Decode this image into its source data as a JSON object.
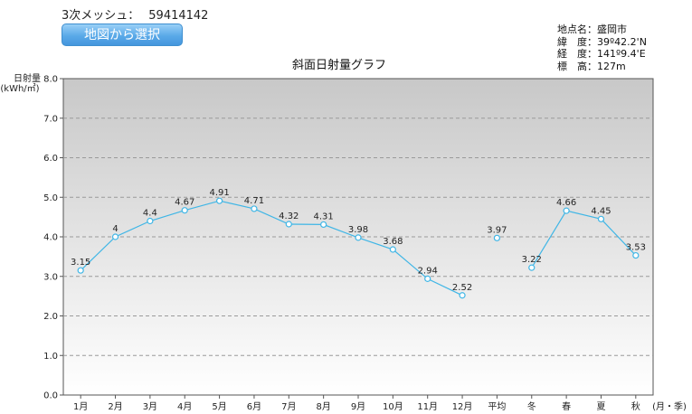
{
  "header": {
    "mesh_label": "3次メッシュ：",
    "mesh_value": "59414142",
    "map_button": "地図から選択"
  },
  "location": {
    "rows": [
      {
        "label": "地点名",
        "value": "盛岡市"
      },
      {
        "label": "緯　度",
        "value": "39º42.2'N"
      },
      {
        "label": "経　度",
        "value": "141º9.4'E"
      },
      {
        "label": "標　高",
        "value": "127m"
      }
    ]
  },
  "chart_data": {
    "type": "line",
    "title": "斜面日射量グラフ",
    "ylabel_line1": "日射量",
    "ylabel_line2": "(kWh/㎡)",
    "xlabel": "(月・季)",
    "ylim": [
      0,
      8
    ],
    "yticks": [
      "0.0",
      "1.0",
      "2.0",
      "3.0",
      "4.0",
      "5.0",
      "6.0",
      "7.0",
      "8.0"
    ],
    "grid": true,
    "categories": [
      "1月",
      "2月",
      "3月",
      "4月",
      "5月",
      "6月",
      "7月",
      "8月",
      "9月",
      "10月",
      "11月",
      "12月",
      "平均",
      "冬",
      "春",
      "夏",
      "秋"
    ],
    "value_labels": [
      "3.15",
      "4",
      "4.4",
      "4.67",
      "4.91",
      "4.71",
      "4.32",
      "4.31",
      "3.98",
      "3.68",
      "2.94",
      "2.52",
      "3.97",
      "3.22",
      "4.66",
      "4.45",
      "3.53"
    ],
    "values": [
      3.15,
      4.0,
      4.4,
      4.67,
      4.91,
      4.71,
      4.32,
      4.31,
      3.98,
      3.68,
      2.94,
      2.52,
      3.97,
      3.22,
      4.66,
      4.45,
      3.53
    ],
    "line_segments": [
      [
        0,
        11
      ],
      [
        12,
        12
      ],
      [
        13,
        16
      ]
    ],
    "colors": {
      "line": "#3fb6e6",
      "marker": "#3fb6e6",
      "plot_top": "#c8c8c8",
      "plot_bottom": "#ffffff"
    }
  }
}
